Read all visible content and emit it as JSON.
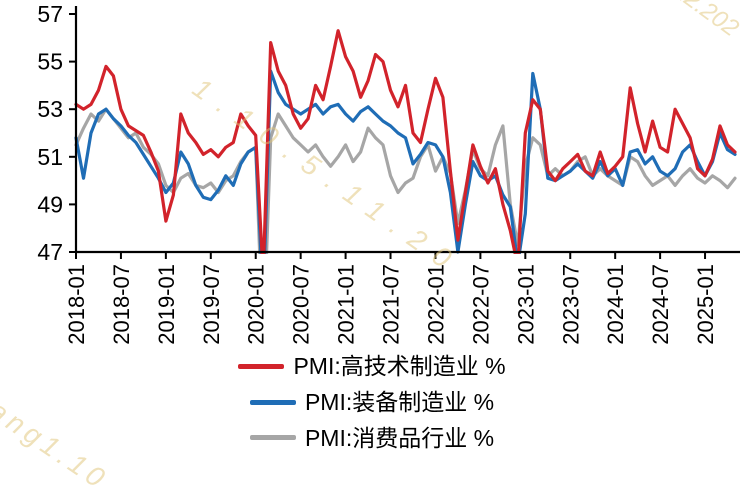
{
  "watermarks": [
    "12.202",
    "1.10.5.11.20",
    "iang1.10"
  ],
  "chart_data": {
    "type": "line",
    "title": "",
    "xlabel": "",
    "ylabel": "",
    "ylim": [
      47,
      57
    ],
    "y_ticks": [
      47,
      49,
      51,
      53,
      55,
      57
    ],
    "grid": false,
    "legend_position": "bottom",
    "x_ticks": [
      "2018-01",
      "2018-07",
      "2019-01",
      "2019-07",
      "2020-01",
      "2020-07",
      "2021-01",
      "2021-07",
      "2022-01",
      "2022-07",
      "2023-01",
      "2023-07",
      "2024-01",
      "2024-07",
      "2025-01"
    ],
    "categories": [
      "2018-01",
      "2018-02",
      "2018-03",
      "2018-04",
      "2018-05",
      "2018-06",
      "2018-07",
      "2018-08",
      "2018-09",
      "2018-10",
      "2018-11",
      "2018-12",
      "2019-01",
      "2019-02",
      "2019-03",
      "2019-04",
      "2019-05",
      "2019-06",
      "2019-07",
      "2019-08",
      "2019-09",
      "2019-10",
      "2019-11",
      "2019-12",
      "2020-01",
      "2020-02",
      "2020-03",
      "2020-04",
      "2020-05",
      "2020-06",
      "2020-07",
      "2020-08",
      "2020-09",
      "2020-10",
      "2020-11",
      "2020-12",
      "2021-01",
      "2021-02",
      "2021-03",
      "2021-04",
      "2021-05",
      "2021-06",
      "2021-07",
      "2021-08",
      "2021-09",
      "2021-10",
      "2021-11",
      "2021-12",
      "2022-01",
      "2022-02",
      "2022-03",
      "2022-04",
      "2022-05",
      "2022-06",
      "2022-07",
      "2022-08",
      "2022-09",
      "2022-10",
      "2022-11",
      "2022-12",
      "2023-01",
      "2023-02",
      "2023-03",
      "2023-04",
      "2023-05",
      "2023-06",
      "2023-07",
      "2023-08",
      "2023-09",
      "2023-10",
      "2023-11",
      "2023-12",
      "2024-01",
      "2024-02",
      "2024-03",
      "2024-04",
      "2024-05",
      "2024-06",
      "2024-07",
      "2024-08",
      "2024-09",
      "2024-10",
      "2024-11",
      "2024-12",
      "2025-01",
      "2025-02",
      "2025-03",
      "2025-04",
      "2025-05"
    ],
    "series": [
      {
        "key": "hightech",
        "name": "PMI:高技术制造业 %",
        "color": "#d2232b",
        "values": [
          53.2,
          53.0,
          53.2,
          53.8,
          54.8,
          54.4,
          53.0,
          52.3,
          52.1,
          51.9,
          51.2,
          50.4,
          48.3,
          49.4,
          52.8,
          52.0,
          51.6,
          51.1,
          51.3,
          51.0,
          51.4,
          51.6,
          52.8,
          52.3,
          51.9,
          46.0,
          55.8,
          54.6,
          54.0,
          52.8,
          52.2,
          52.6,
          54.0,
          53.4,
          54.8,
          56.3,
          55.2,
          54.6,
          53.5,
          54.2,
          55.3,
          55.0,
          53.8,
          53.1,
          54.0,
          52.0,
          51.6,
          53.0,
          54.3,
          53.5,
          50.4,
          47.5,
          49.5,
          51.5,
          50.6,
          49.9,
          50.5,
          49.0,
          47.9,
          46.4,
          52.0,
          53.4,
          53.0,
          50.4,
          50.0,
          50.5,
          50.8,
          51.1,
          50.4,
          50.2,
          51.2,
          50.3,
          50.6,
          51.0,
          53.9,
          52.4,
          51.2,
          52.5,
          51.4,
          51.2,
          53.0,
          52.4,
          51.8,
          50.5,
          50.2,
          50.9,
          52.3,
          51.5,
          51.2
        ]
      },
      {
        "key": "equipment",
        "name": "PMI:装备制造业 %",
        "color": "#1f6db6",
        "values": [
          51.8,
          50.1,
          52.0,
          52.8,
          53.0,
          52.6,
          52.3,
          51.9,
          51.6,
          51.1,
          50.6,
          50.1,
          49.5,
          49.9,
          51.2,
          50.7,
          49.8,
          49.3,
          49.2,
          49.6,
          50.2,
          49.8,
          50.7,
          51.2,
          51.4,
          45.0,
          54.6,
          53.7,
          53.2,
          53.0,
          52.8,
          53.0,
          53.2,
          52.8,
          53.1,
          53.2,
          52.8,
          52.5,
          52.9,
          53.1,
          52.8,
          52.5,
          52.3,
          52.0,
          51.8,
          50.7,
          51.1,
          51.6,
          51.5,
          51.0,
          49.5,
          47.0,
          49.0,
          50.8,
          50.2,
          50.0,
          50.2,
          49.4,
          48.9,
          46.5,
          48.6,
          54.5,
          53.0,
          50.1,
          50.0,
          50.2,
          50.4,
          50.7,
          50.4,
          50.1,
          50.8,
          50.2,
          50.5,
          49.8,
          51.2,
          51.3,
          50.7,
          51.0,
          50.4,
          50.2,
          50.5,
          51.2,
          51.5,
          50.8,
          50.2,
          50.8,
          52.0,
          51.3,
          51.1
        ]
      },
      {
        "key": "consumer",
        "name": "PMI:消费品行业 %",
        "color": "#a6a6a6",
        "values": [
          51.5,
          52.2,
          52.8,
          52.5,
          53.0,
          52.6,
          52.2,
          51.8,
          52.0,
          51.4,
          51.1,
          50.7,
          49.8,
          49.5,
          50.1,
          50.3,
          49.8,
          49.7,
          49.9,
          49.5,
          50.0,
          50.2,
          50.8,
          51.2,
          51.4,
          43.0,
          51.8,
          52.8,
          52.3,
          51.8,
          51.5,
          51.2,
          51.5,
          51.0,
          50.6,
          51.0,
          51.5,
          50.8,
          51.2,
          52.2,
          51.8,
          51.5,
          50.2,
          49.5,
          49.9,
          50.1,
          51.0,
          51.5,
          50.4,
          51.0,
          50.3,
          48.2,
          49.6,
          51.3,
          50.5,
          50.2,
          51.5,
          52.3,
          49.0,
          47.3,
          50.6,
          51.8,
          51.5,
          50.2,
          50.5,
          50.2,
          50.4,
          50.8,
          51.0,
          50.2,
          50.5,
          50.2,
          50.0,
          49.8,
          51.0,
          50.8,
          50.2,
          49.8,
          50.0,
          50.2,
          49.8,
          50.2,
          50.5,
          50.1,
          49.9,
          50.2,
          50.0,
          49.7,
          50.1
        ]
      }
    ]
  }
}
